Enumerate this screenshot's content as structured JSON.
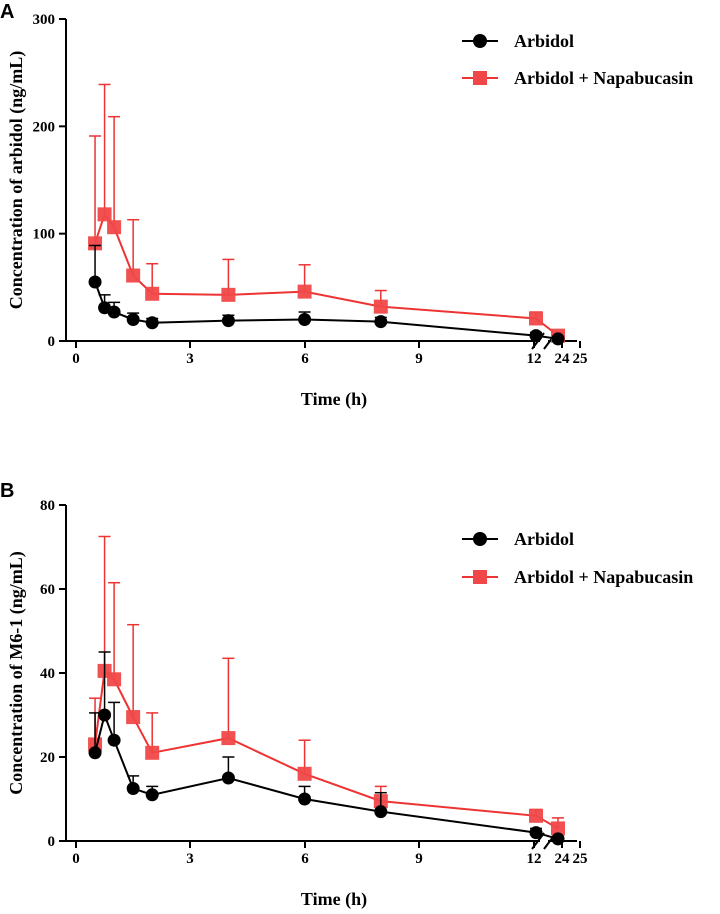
{
  "colors": {
    "arbidol": "#000000",
    "combo": "#ee3333",
    "combo_fill": "#f04848"
  },
  "chart_data": [
    {
      "panel": "A",
      "type": "line",
      "xlabel": "Time (h)",
      "ylabel": "Concentration of arbidol (ng/mL)",
      "ylim": [
        0,
        300
      ],
      "y_ticks": [
        0,
        100,
        200,
        300
      ],
      "x_tick_labels": [
        "0",
        "3",
        "6",
        "9",
        "12",
        "24",
        "25"
      ],
      "x_axis_break": "between 12 and 24",
      "legend_position": "top-right",
      "series": [
        {
          "name": "Arbidol",
          "marker": "circle",
          "color": "#000000",
          "x": [
            0.5,
            0.75,
            1,
            1.5,
            2,
            4,
            6,
            8,
            12,
            24
          ],
          "y": [
            55,
            31,
            27,
            20,
            17,
            19,
            20,
            18,
            5,
            2
          ],
          "err": [
            34,
            12,
            9,
            6,
            4,
            5,
            7,
            4,
            3,
            2
          ]
        },
        {
          "name": "Arbidol + Napabucasin",
          "marker": "square",
          "color": "#ee3333",
          "x": [
            0.5,
            0.75,
            1,
            1.5,
            2,
            4,
            6,
            8,
            12,
            24
          ],
          "y": [
            91,
            118,
            106,
            61,
            44,
            43,
            46,
            32,
            21,
            5
          ],
          "err": [
            100,
            121,
            103,
            52,
            28,
            33,
            25,
            15,
            6,
            3
          ]
        }
      ]
    },
    {
      "panel": "B",
      "type": "line",
      "xlabel": "Time (h)",
      "ylabel": "Concentration of M6-1 (ng/mL)",
      "ylim": [
        0,
        80
      ],
      "y_ticks": [
        0,
        20,
        40,
        60,
        80
      ],
      "x_tick_labels": [
        "0",
        "3",
        "6",
        "9",
        "12",
        "24",
        "25"
      ],
      "x_axis_break": "between 12 and 24",
      "legend_position": "top-right",
      "series": [
        {
          "name": "Arbidol",
          "marker": "circle",
          "color": "#000000",
          "x": [
            0.5,
            0.75,
            1,
            1.5,
            2,
            4,
            6,
            8,
            12,
            24
          ],
          "y": [
            21,
            30,
            24,
            12.5,
            11,
            15,
            10,
            7,
            2,
            0.5
          ],
          "err": [
            9.5,
            15,
            9,
            3,
            2,
            5,
            3,
            4.5,
            1,
            0.5
          ]
        },
        {
          "name": "Arbidol + Napabucasin",
          "marker": "square",
          "color": "#ee3333",
          "x": [
            0.5,
            0.75,
            1,
            1.5,
            2,
            4,
            6,
            8,
            12,
            24
          ],
          "y": [
            23,
            40.5,
            38.5,
            29.5,
            21,
            24.5,
            16,
            9.5,
            6,
            3
          ],
          "err": [
            11,
            32,
            23,
            22,
            9.5,
            19,
            8,
            3.5,
            1.5,
            2.5
          ]
        }
      ]
    }
  ]
}
